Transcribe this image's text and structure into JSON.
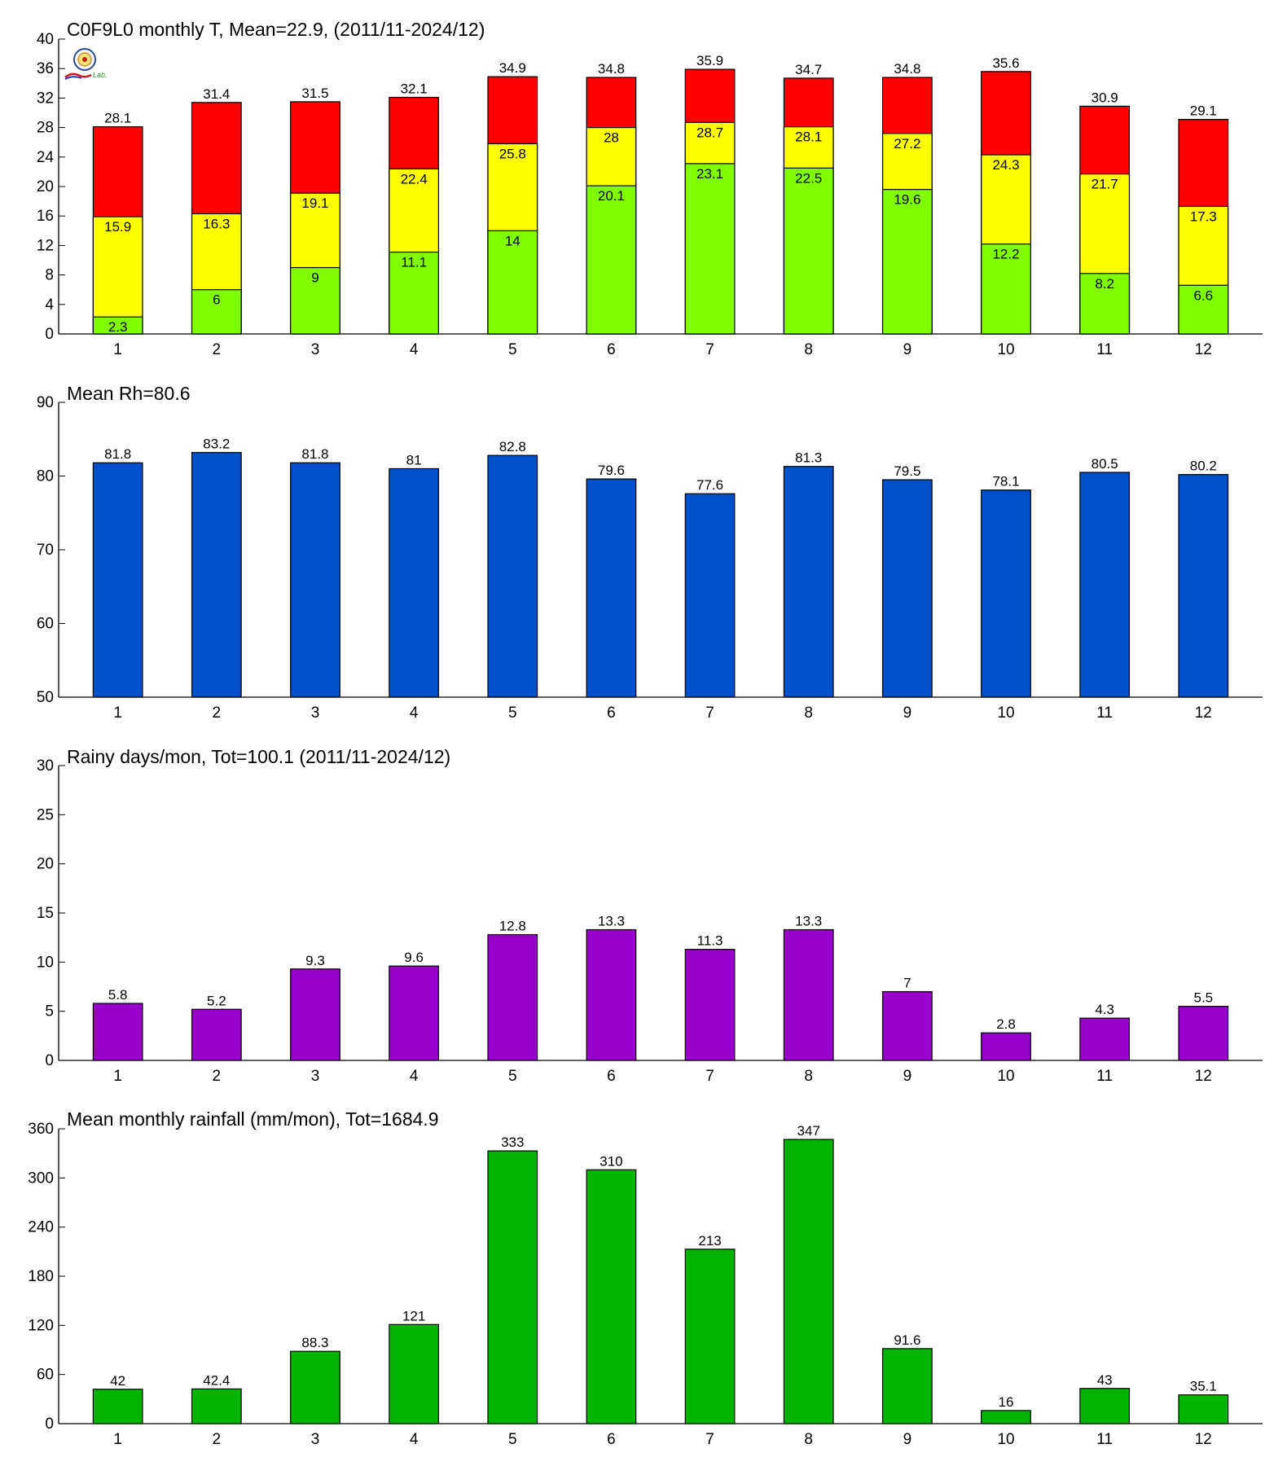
{
  "chart_data": [
    {
      "type": "bar",
      "stacked_overlay": true,
      "title": "C0F9L0 monthly T, Mean=22.9, (2011/11-2024/12)",
      "categories": [
        "1",
        "2",
        "3",
        "4",
        "5",
        "6",
        "7",
        "8",
        "9",
        "10",
        "11",
        "12"
      ],
      "ylim": [
        0,
        40
      ],
      "yticks": [
        0,
        4,
        8,
        12,
        16,
        20,
        24,
        28,
        32,
        36,
        40
      ],
      "series": [
        {
          "key": "max",
          "color": "#ff0000",
          "values": [
            28.1,
            31.4,
            31.5,
            32.1,
            34.9,
            34.8,
            35.9,
            34.7,
            34.8,
            35.6,
            30.9,
            29.1
          ]
        },
        {
          "key": "mean",
          "color": "#ffff00",
          "values": [
            15.9,
            16.3,
            19.1,
            22.4,
            25.8,
            28,
            28.7,
            28.1,
            27.2,
            24.3,
            21.7,
            17.3
          ]
        },
        {
          "key": "min",
          "color": "#80ff00",
          "values": [
            2.3,
            6,
            9,
            11.1,
            14,
            20.1,
            23.1,
            22.5,
            19.6,
            12.2,
            8.2,
            6.6
          ]
        }
      ],
      "labels": {
        "max": [
          "28.1",
          "31.4",
          "31.5",
          "32.1",
          "34.9",
          "34.8",
          "35.9",
          "34.7",
          "34.8",
          "35.6",
          "30.9",
          "29.1"
        ],
        "mean": [
          "15.9",
          "16.3",
          "19.1",
          "22.4",
          "25.8",
          "28",
          "28.7",
          "28.1",
          "27.2",
          "24.3",
          "21.7",
          "17.3"
        ],
        "min": [
          "2.3",
          "6",
          "9",
          "11.1",
          "14",
          "20.1",
          "23.1",
          "22.5",
          "19.6",
          "12.2",
          "8.2",
          "6.6"
        ]
      },
      "grid": false
    },
    {
      "type": "bar",
      "title": "Mean Rh=80.6",
      "categories": [
        "1",
        "2",
        "3",
        "4",
        "5",
        "6",
        "7",
        "8",
        "9",
        "10",
        "11",
        "12"
      ],
      "ylim": [
        50,
        90
      ],
      "yticks": [
        50,
        60,
        70,
        80,
        90
      ],
      "color": "#0050cc",
      "values": [
        81.8,
        83.2,
        81.8,
        81,
        82.8,
        79.6,
        77.6,
        81.3,
        79.5,
        78.1,
        80.5,
        80.2
      ],
      "labels": [
        "81.8",
        "83.2",
        "81.8",
        "81",
        "82.8",
        "79.6",
        "77.6",
        "81.3",
        "79.5",
        "78.1",
        "80.5",
        "80.2"
      ],
      "grid": false
    },
    {
      "type": "bar",
      "title": "Rainy days/mon, Tot=100.1 (2011/11-2024/12)",
      "categories": [
        "1",
        "2",
        "3",
        "4",
        "5",
        "6",
        "7",
        "8",
        "9",
        "10",
        "11",
        "12"
      ],
      "ylim": [
        0,
        30
      ],
      "yticks": [
        0,
        5,
        10,
        15,
        20,
        25,
        30
      ],
      "color": "#9900cc",
      "values": [
        5.8,
        5.2,
        9.3,
        9.6,
        12.8,
        13.3,
        11.3,
        13.3,
        7,
        2.8,
        4.3,
        5.5
      ],
      "labels": [
        "5.8",
        "5.2",
        "9.3",
        "9.6",
        "12.8",
        "13.3",
        "11.3",
        "13.3",
        "7",
        "2.8",
        "4.3",
        "5.5"
      ],
      "grid": false
    },
    {
      "type": "bar",
      "title": "Mean monthly rainfall (mm/mon), Tot=1684.9",
      "categories": [
        "1",
        "2",
        "3",
        "4",
        "5",
        "6",
        "7",
        "8",
        "9",
        "10",
        "11",
        "12"
      ],
      "ylim": [
        0,
        360
      ],
      "yticks": [
        0,
        60,
        120,
        180,
        240,
        300,
        360
      ],
      "color": "#00b400",
      "values": [
        42,
        42.4,
        88.3,
        121,
        333,
        310,
        213,
        347,
        91.6,
        16,
        43,
        35.1
      ],
      "labels": [
        "42",
        "42.4",
        "88.3",
        "121",
        "333",
        "310",
        "213",
        "347",
        "91.6",
        "16",
        "43",
        "35.1"
      ],
      "grid": false
    }
  ],
  "logo": {
    "icon": "weather-bureau-seal-icon",
    "text": "Lab."
  }
}
